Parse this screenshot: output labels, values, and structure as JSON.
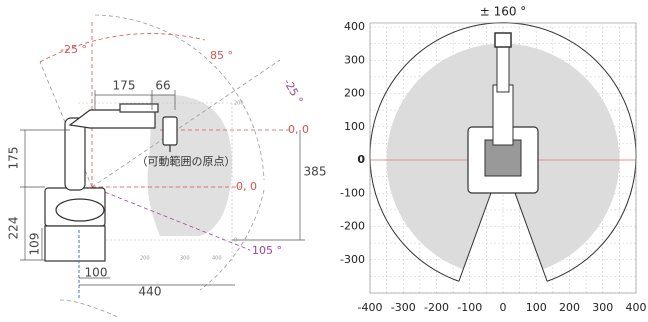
{
  "side_view": {
    "angles": [
      "-25 °",
      "85 °",
      "-25 °",
      "105 °"
    ],
    "dimensions": [
      "175",
      "66",
      "175",
      "224",
      "109",
      "100",
      "440",
      "385"
    ],
    "origin_labels": [
      "0, 0",
      "0, 0"
    ],
    "origin_note": "（可動範囲の原点）"
  },
  "top_view": {
    "rotation": "± 160 °",
    "xlim": [
      -400,
      400
    ],
    "ylim": [
      -400,
      400
    ],
    "xticks": [
      -400,
      -300,
      -200,
      -100,
      0,
      100,
      200,
      300,
      400
    ],
    "yticks": [
      400,
      300,
      200,
      100,
      0,
      -100,
      -200,
      -300
    ]
  }
}
